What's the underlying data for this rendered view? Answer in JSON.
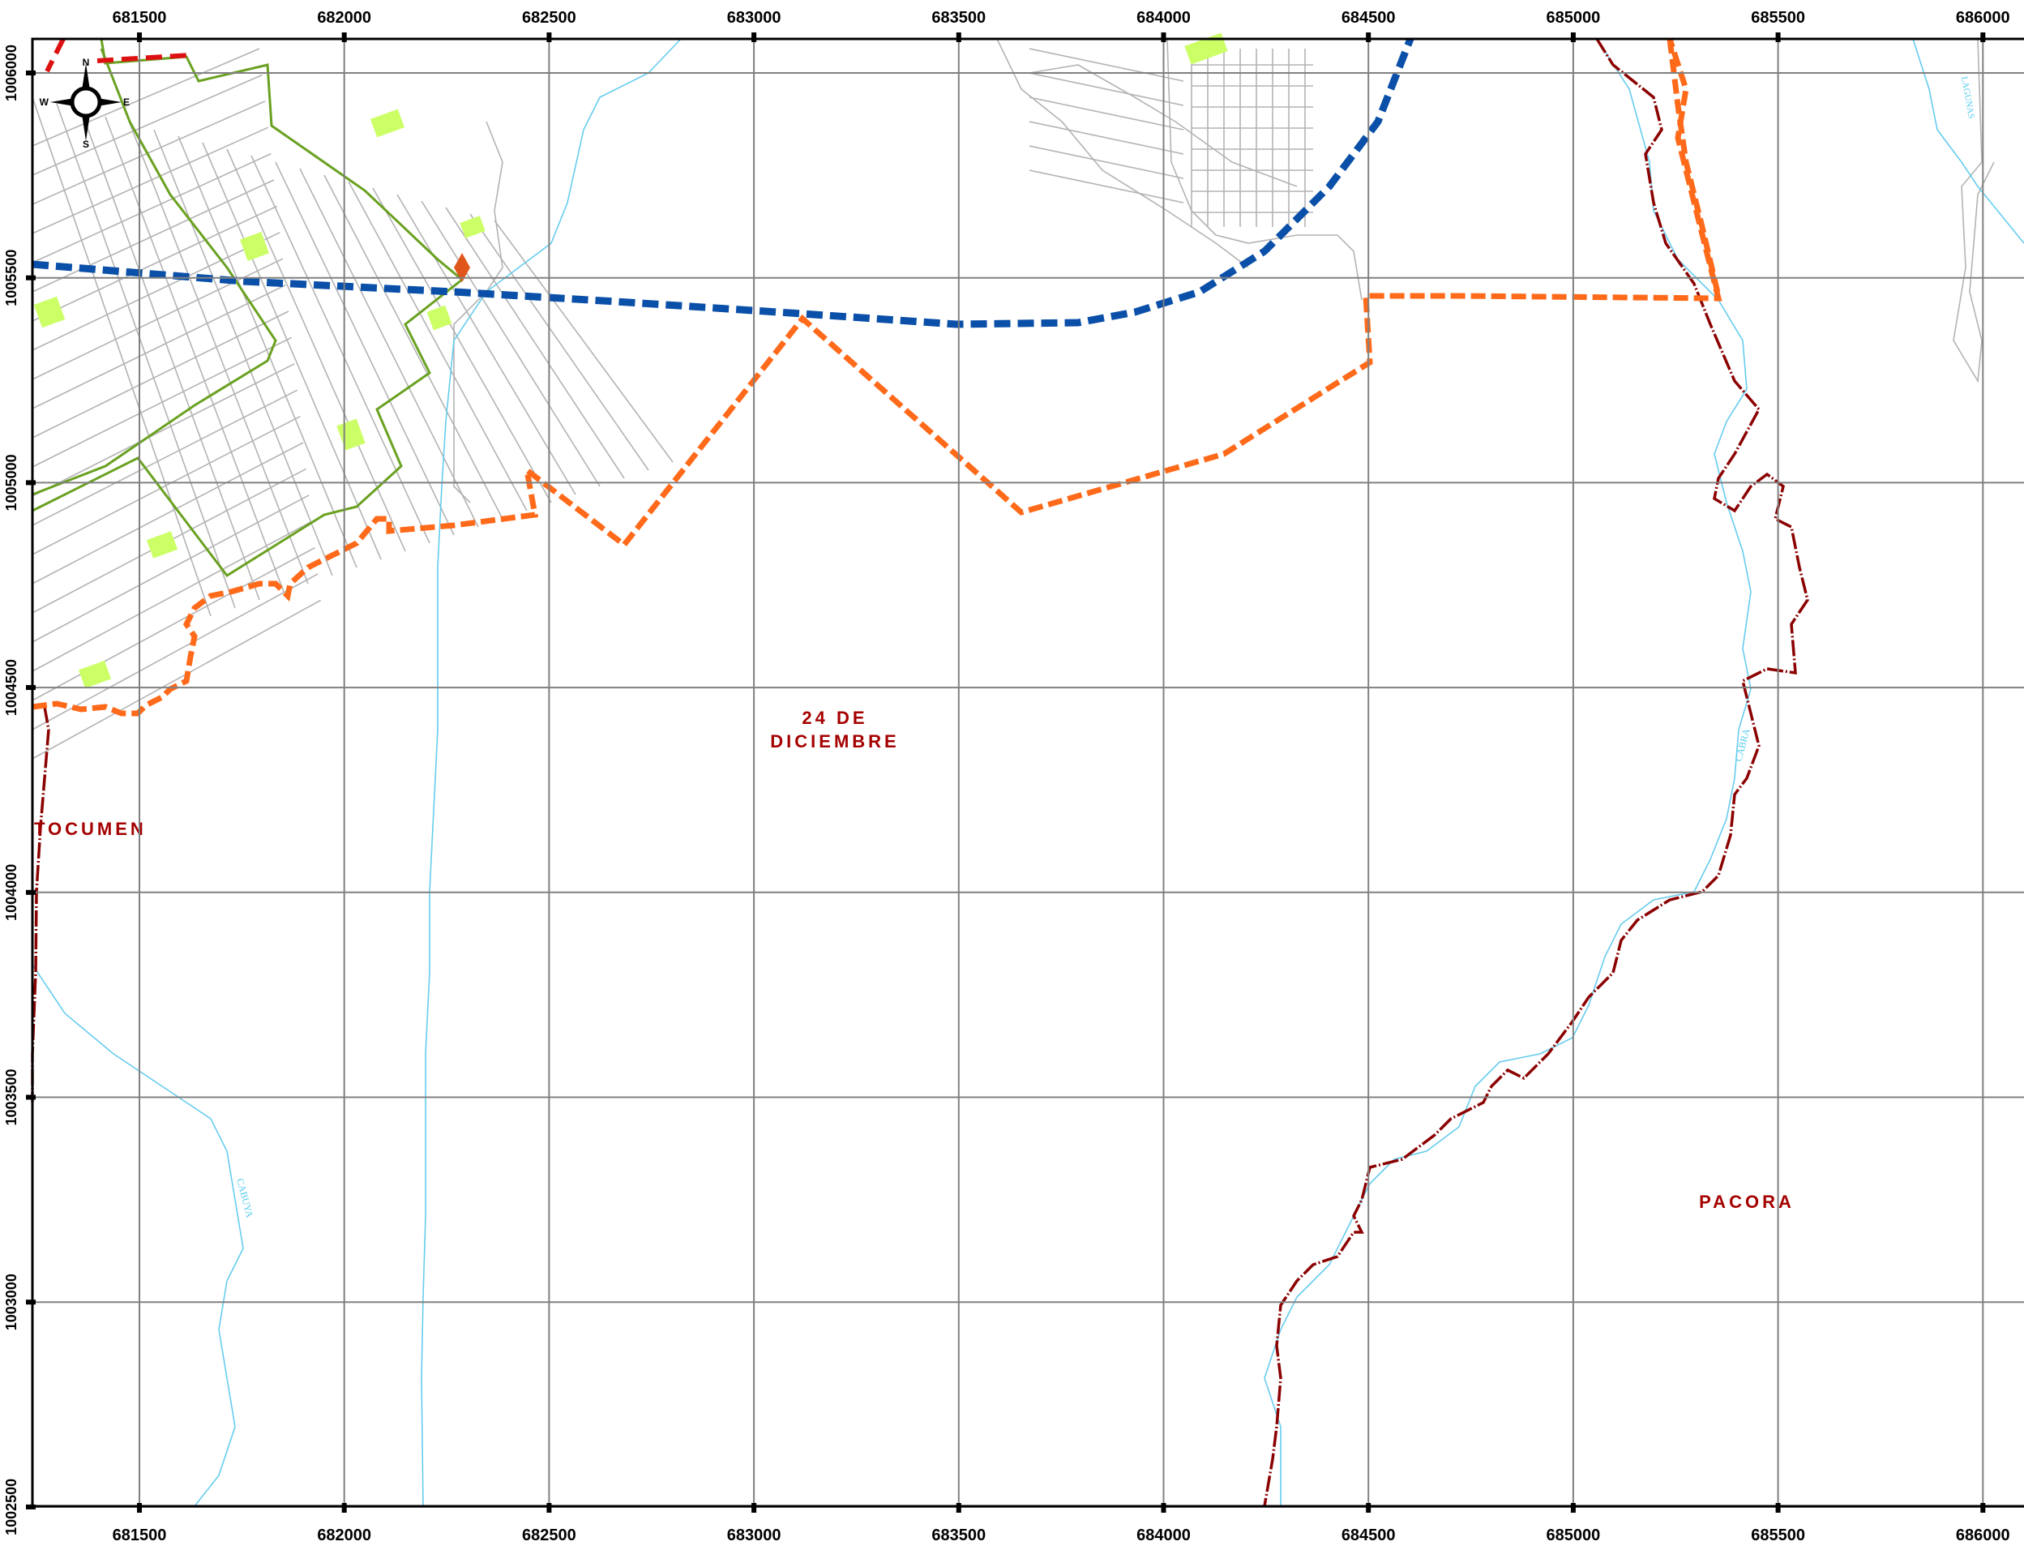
{
  "map": {
    "x_ticks": [
      "681500",
      "682000",
      "682500",
      "683000",
      "683500",
      "684000",
      "684500",
      "685000",
      "685500",
      "686000"
    ],
    "y_ticks": [
      "1006000",
      "1005500",
      "1005000",
      "1004500",
      "1004000",
      "1003500",
      "1003000",
      "1002500"
    ],
    "place_labels": {
      "tocumen": "TOCUMEN",
      "dic_line1": "24 DE",
      "dic_line2": "DICIEMBRE",
      "pacora": "PACORA"
    },
    "river_labels": {
      "cabuya": "CABUYA",
      "cabra": "CABRA",
      "lagunas": "LAGUNAS"
    },
    "compass": {
      "n": "N",
      "s": "S",
      "e": "E",
      "w": "W"
    },
    "colors": {
      "grid": "#808080",
      "street": "#b3b3b3",
      "river": "#66ccee",
      "corregimiento_boundary": "#8b0000",
      "project_boundary": "#ff6a1a",
      "proposed_route": "#0a4fa8",
      "neighborhood_outline": "#6aa121",
      "park": "#ccff66",
      "label": "#a50000"
    }
  }
}
